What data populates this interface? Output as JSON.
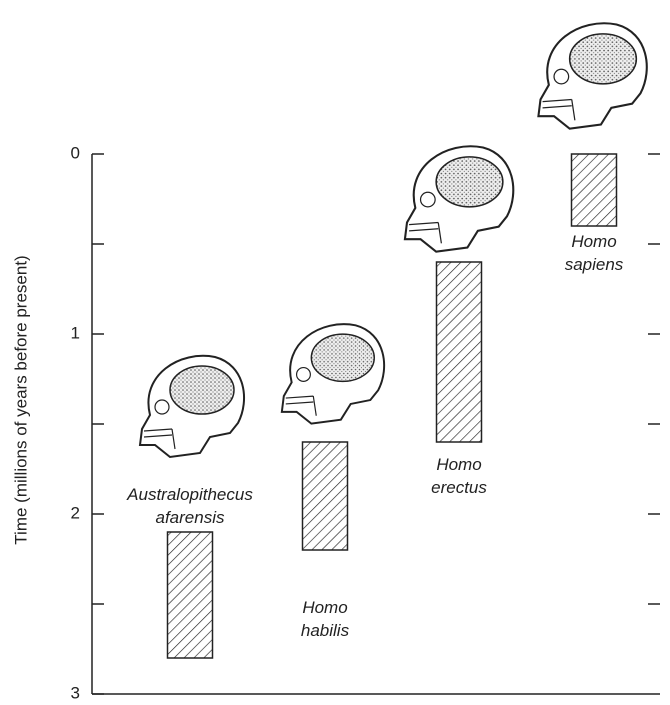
{
  "chart_data": {
    "type": "range-bar",
    "y_label": "Time (millions of years before present)",
    "categories": [
      "Australopithecus afarensis",
      "Homo habilis",
      "Homo erectus",
      "Homo sapiens"
    ],
    "start": [
      2.1,
      1.6,
      0.6,
      0
    ],
    "end": [
      2.8,
      2.2,
      1.6,
      0.4
    ],
    "ylim": [
      3,
      0
    ],
    "yticks": [
      0,
      1,
      2,
      3
    ],
    "minor_yticks": [
      0.5,
      1.5,
      2.5
    ],
    "color": "#222222"
  }
}
